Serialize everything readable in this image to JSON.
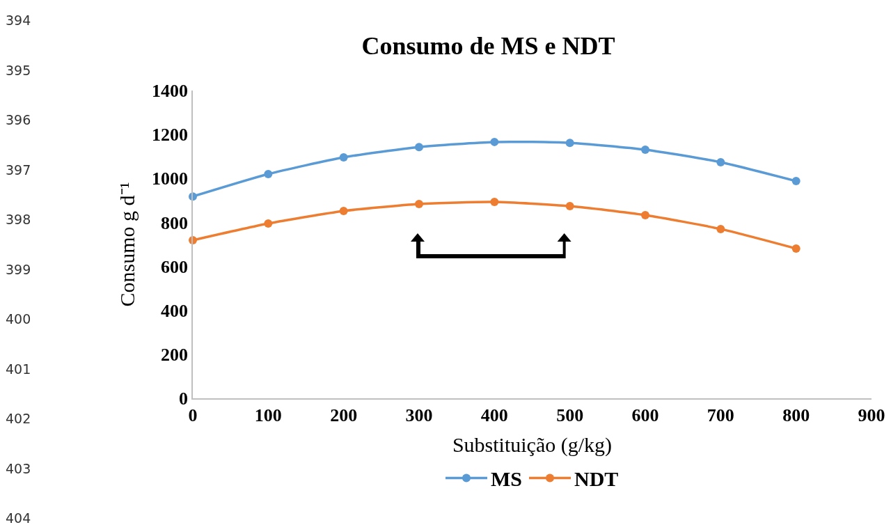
{
  "chart_data": {
    "type": "line",
    "title": "Consumo de MS e NDT",
    "xlabel": "Substituição (g/kg)",
    "ylabel": "Consumo g d⁻¹",
    "x": [
      0,
      100,
      200,
      300,
      400,
      500,
      600,
      700,
      800
    ],
    "series": [
      {
        "name": "MS",
        "color": "#5b9bd5",
        "values": [
          918,
          1020,
          1096,
          1143,
          1166,
          1162,
          1131,
          1074,
          988
        ]
      },
      {
        "name": "NDT",
        "color": "#ed7d31",
        "values": [
          719,
          795,
          852,
          884,
          893,
          874,
          833,
          770,
          681
        ]
      }
    ],
    "xlim": [
      0,
      900
    ],
    "xticks": [
      0,
      100,
      200,
      300,
      400,
      500,
      600,
      700,
      800,
      900
    ],
    "ylim": [
      0,
      1400
    ],
    "yticks": [
      0,
      200,
      400,
      600,
      800,
      1000,
      1200,
      1400
    ],
    "grid": false,
    "legend": "bottom",
    "marker": "circle",
    "line_style": "solid",
    "annotations": [
      "394",
      "395",
      "396",
      "397",
      "398",
      "399",
      "400",
      "401",
      "402",
      "403",
      "404"
    ]
  }
}
